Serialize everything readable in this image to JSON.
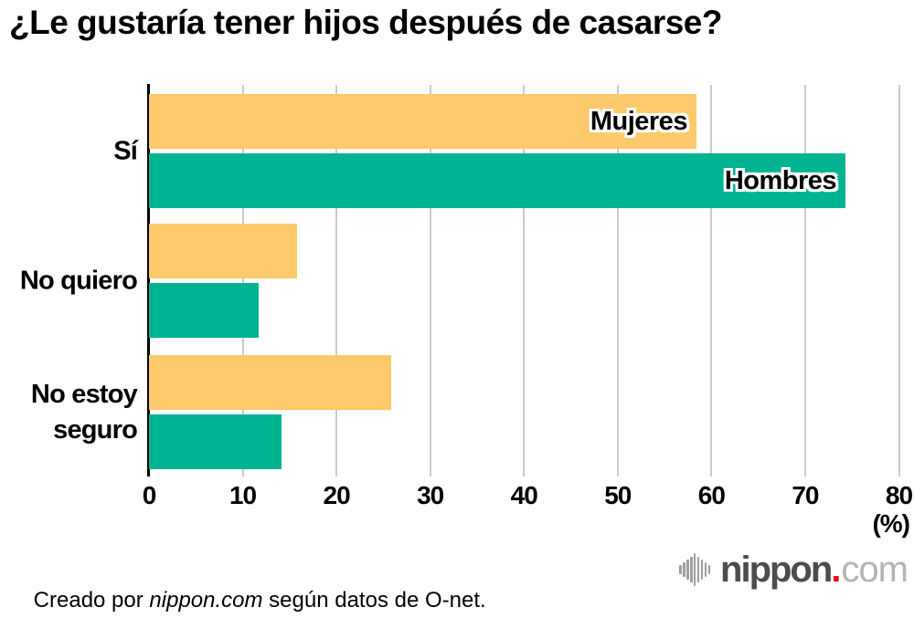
{
  "chart_data": {
    "type": "bar",
    "orientation": "horizontal",
    "title": "¿Le gustaría tener hijos después de casarse?",
    "categories": [
      "Sí",
      "No quiero",
      "No estoy seguro"
    ],
    "series": [
      {
        "name": "Mujeres",
        "color": "#fcc96b",
        "values": [
          58.4,
          15.8,
          25.8
        ]
      },
      {
        "name": "Hombres",
        "color": "#00b491",
        "values": [
          74.3,
          11.7,
          14.1
        ]
      }
    ],
    "xlim": [
      0,
      80
    ],
    "xticks": [
      0,
      10,
      20,
      30,
      40,
      50,
      60,
      70,
      80
    ],
    "x_unit_label": "(%)",
    "grid": true,
    "legend_position": "inside-first-group-bars",
    "gridline_color": "#cacaca",
    "axis_color": "#000000"
  },
  "footer": {
    "credit_prefix": "Creado por ",
    "credit_brand": "nippon.com",
    "credit_suffix": " según datos de O-net."
  },
  "logo": {
    "brand": "nippon",
    "dot": ".",
    "tld": "com",
    "icon": "soundwave-bars-icon",
    "colors": {
      "brand": "#4c4c4c",
      "dot": "#e60012",
      "tld": "#b3b3b3",
      "bars": "#9e9e9e"
    }
  }
}
